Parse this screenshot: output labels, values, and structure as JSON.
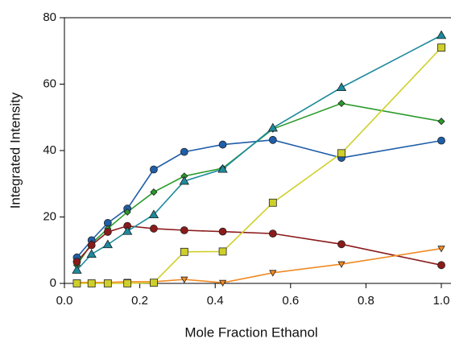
{
  "chart_data": {
    "type": "line",
    "x_label": "Mole Fraction Ethanol",
    "y_label": "Integrated Intensity",
    "xlim": [
      0,
      1
    ],
    "ylim": [
      0,
      80
    ],
    "xticks": [
      {
        "value": 0,
        "label": "0.0"
      },
      {
        "value": 0.2,
        "label": "0.2"
      },
      {
        "value": 0.4,
        "label": "0.4"
      },
      {
        "value": 0.6,
        "label": "0.6"
      },
      {
        "value": 0.8,
        "label": "0.8"
      },
      {
        "value": 1,
        "label": "1.0"
      }
    ],
    "yticks": [
      0,
      20,
      40,
      60,
      80
    ],
    "x": [
      0.033,
      0.072,
      0.115,
      0.167,
      0.237,
      0.318,
      0.42,
      0.553,
      0.735,
      1.0
    ],
    "series": [
      {
        "color": "#1f5ea8",
        "marker": "circle",
        "values": [
          7.8,
          13,
          18.2,
          22.5,
          34.3,
          39.6,
          41.8,
          43.2,
          37.8,
          43
        ]
      },
      {
        "color": "#2a9a2a",
        "marker": "diamond",
        "values": [
          5.5,
          12,
          16.5,
          21.5,
          27.5,
          32.3,
          34.7,
          46.5,
          54.2,
          48.8
        ]
      },
      {
        "color": "#8b1a1a",
        "marker": "circle",
        "values": [
          6.5,
          11.5,
          15.5,
          17.3,
          16.5,
          16,
          15.6,
          15,
          11.8,
          5.5
        ]
      },
      {
        "color": "#f08a24",
        "marker": "triangle-down",
        "values": [
          0.3,
          0.3,
          0.3,
          0.5,
          0.5,
          1.2,
          0.2,
          3.2,
          5.8,
          10.5
        ]
      },
      {
        "color": "#cfcf2a",
        "marker": "square",
        "values": [
          0,
          0,
          0,
          0,
          0.2,
          9.5,
          9.6,
          24.3,
          39.2,
          71
        ]
      },
      {
        "color": "#1c8a9c",
        "marker": "triangle-up",
        "values": [
          4,
          8.8,
          11.7,
          15.7,
          20.7,
          30.8,
          34.4,
          46.8,
          59,
          74.7
        ]
      }
    ]
  }
}
